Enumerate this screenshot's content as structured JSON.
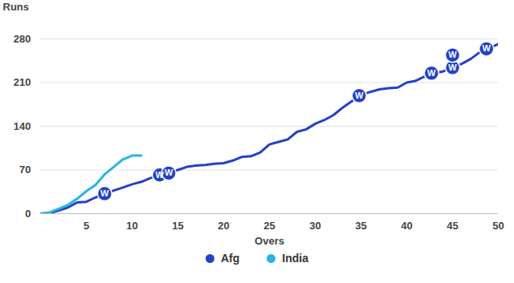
{
  "chart_data": {
    "type": "line",
    "xlabel": "Overs",
    "ylabel": "Runs",
    "xlim": [
      0,
      50
    ],
    "xticks": [
      5,
      10,
      15,
      20,
      25,
      30,
      35,
      40,
      45,
      50
    ],
    "ylim": [
      0,
      280
    ],
    "yticks": [
      0,
      70,
      140,
      210,
      280
    ],
    "grid": true,
    "legend": "bottom",
    "series": [
      {
        "name": "Afg",
        "color": "#2242c7",
        "x": [
          0,
          1,
          2,
          3,
          4,
          5,
          6,
          7,
          8,
          9,
          10,
          11,
          12,
          13,
          14,
          15,
          16,
          17,
          18,
          19,
          20,
          21,
          22,
          23,
          24,
          25,
          26,
          27,
          28,
          29,
          30,
          31,
          32,
          33,
          34,
          35,
          36,
          37,
          38,
          39,
          40,
          41,
          42,
          43,
          44,
          45,
          46,
          47,
          48,
          49,
          50
        ],
        "values": [
          0,
          1,
          5,
          10,
          18,
          19,
          26,
          31,
          37,
          42,
          47,
          51,
          57,
          61,
          65,
          70,
          75,
          77,
          78,
          80,
          81,
          85,
          91,
          92,
          98,
          111,
          115,
          119,
          131,
          135,
          144,
          150,
          158,
          170,
          180,
          190,
          195,
          199,
          201,
          202,
          210,
          213,
          220,
          225,
          228,
          234,
          240,
          248,
          259,
          265,
          272
        ]
      },
      {
        "name": "India",
        "color": "#2ab4e6",
        "x": [
          0,
          1,
          2,
          3,
          4,
          5,
          6,
          7,
          8,
          9,
          10,
          11
        ],
        "values": [
          0,
          2,
          8,
          14,
          24,
          36,
          46,
          63,
          75,
          87,
          93,
          93
        ]
      }
    ],
    "annotations": [
      {
        "text": "W",
        "series": "Afg",
        "x": 7,
        "y": 32
      },
      {
        "text": "W",
        "series": "Afg",
        "x": 13,
        "y": 62
      },
      {
        "text": "W",
        "series": "Afg",
        "x": 14,
        "y": 65
      },
      {
        "text": "W",
        "series": "Afg",
        "x": 34.8,
        "y": 189
      },
      {
        "text": "W",
        "series": "Afg",
        "x": 42.7,
        "y": 225
      },
      {
        "text": "W",
        "series": "Afg",
        "x": 45,
        "y": 234
      },
      {
        "text": "W",
        "series": "Afg",
        "x": 45,
        "y": 254
      },
      {
        "text": "W",
        "series": "Afg",
        "x": 48.7,
        "y": 264
      }
    ]
  }
}
